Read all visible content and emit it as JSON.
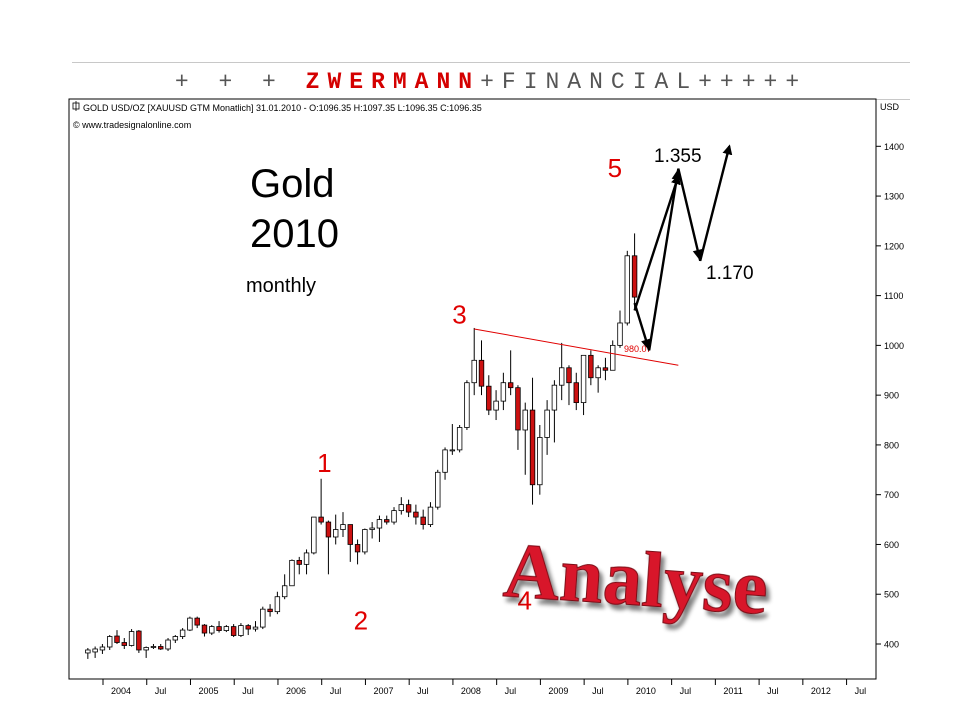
{
  "banner": {
    "prefix": "+ + + ",
    "brand": "ZWERMANN",
    "suffix": "+FINANCIAL+++++"
  },
  "chart_header": {
    "instrument": "GOLD USD/OZ [XAUUSD GTM  Monatlich] 31.01.2010 - O:1096.35 H:1097.35 L:1096.35 C:1096.35",
    "copyright": "© www.tradesignalonline.com",
    "currency": "USD"
  },
  "overlay": {
    "title_line1": "Gold",
    "title_line2": "2010",
    "subtitle": "monthly",
    "analyse": "Analyse",
    "support_level": "980.07",
    "target_high": "1.355",
    "target_low": "1.170"
  },
  "colors": {
    "up_candle": "#ffffff",
    "down_candle": "#cc1111",
    "wave_label": "#e00000",
    "trendline": "#e00000",
    "analyse": "#d8192c"
  },
  "chart_data": {
    "type": "candlestick",
    "title": "GOLD USD/OZ [XAUUSD GTM  Monatlich]",
    "ylabel": "USD",
    "ylim": [
      350,
      1470
    ],
    "grid": false,
    "y_ticks": [
      400,
      500,
      600,
      700,
      800,
      900,
      1000,
      1100,
      1200,
      1300,
      1400
    ],
    "x_ticks": [
      "2004",
      "Jul",
      "2005",
      "Jul",
      "2006",
      "Jul",
      "2007",
      "Jul",
      "2008",
      "Jul",
      "2009",
      "Jul",
      "2010",
      "Jul",
      "2011",
      "Jul",
      "2012",
      "Jul"
    ],
    "x_tick_months": [
      0,
      6,
      12,
      18,
      24,
      30,
      36,
      42,
      48,
      54,
      60,
      66,
      72,
      78,
      84,
      90,
      96,
      102
    ],
    "candles": [
      {
        "t": -4,
        "o": 382,
        "h": 392,
        "l": 370,
        "c": 388
      },
      {
        "t": -3,
        "o": 384,
        "h": 395,
        "l": 372,
        "c": 390
      },
      {
        "t": -2,
        "o": 388,
        "h": 400,
        "l": 380,
        "c": 394
      },
      {
        "t": -1,
        "o": 394,
        "h": 418,
        "l": 388,
        "c": 415
      },
      {
        "t": 0,
        "o": 416,
        "h": 428,
        "l": 400,
        "c": 403
      },
      {
        "t": 1,
        "o": 403,
        "h": 412,
        "l": 390,
        "c": 397
      },
      {
        "t": 2,
        "o": 397,
        "h": 430,
        "l": 395,
        "c": 425
      },
      {
        "t": 3,
        "o": 426,
        "h": 428,
        "l": 382,
        "c": 388
      },
      {
        "t": 4,
        "o": 388,
        "h": 395,
        "l": 372,
        "c": 393
      },
      {
        "t": 5,
        "o": 393,
        "h": 400,
        "l": 390,
        "c": 395
      },
      {
        "t": 6,
        "o": 395,
        "h": 400,
        "l": 388,
        "c": 390
      },
      {
        "t": 7,
        "o": 390,
        "h": 412,
        "l": 386,
        "c": 408
      },
      {
        "t": 8,
        "o": 408,
        "h": 418,
        "l": 402,
        "c": 415
      },
      {
        "t": 9,
        "o": 415,
        "h": 432,
        "l": 410,
        "c": 428
      },
      {
        "t": 10,
        "o": 428,
        "h": 455,
        "l": 426,
        "c": 452
      },
      {
        "t": 11,
        "o": 452,
        "h": 455,
        "l": 432,
        "c": 438
      },
      {
        "t": 12,
        "o": 438,
        "h": 440,
        "l": 415,
        "c": 422
      },
      {
        "t": 13,
        "o": 422,
        "h": 438,
        "l": 418,
        "c": 435
      },
      {
        "t": 14,
        "o": 435,
        "h": 446,
        "l": 423,
        "c": 427
      },
      {
        "t": 15,
        "o": 427,
        "h": 438,
        "l": 424,
        "c": 435
      },
      {
        "t": 16,
        "o": 435,
        "h": 440,
        "l": 414,
        "c": 417
      },
      {
        "t": 17,
        "o": 417,
        "h": 442,
        "l": 414,
        "c": 437
      },
      {
        "t": 18,
        "o": 437,
        "h": 440,
        "l": 418,
        "c": 430
      },
      {
        "t": 19,
        "o": 430,
        "h": 446,
        "l": 425,
        "c": 434
      },
      {
        "t": 20,
        "o": 434,
        "h": 475,
        "l": 430,
        "c": 470
      },
      {
        "t": 21,
        "o": 470,
        "h": 480,
        "l": 455,
        "c": 465
      },
      {
        "t": 22,
        "o": 465,
        "h": 505,
        "l": 460,
        "c": 495
      },
      {
        "t": 23,
        "o": 495,
        "h": 540,
        "l": 490,
        "c": 517
      },
      {
        "t": 24,
        "o": 517,
        "h": 570,
        "l": 517,
        "c": 568
      },
      {
        "t": 25,
        "o": 568,
        "h": 575,
        "l": 540,
        "c": 560
      },
      {
        "t": 26,
        "o": 560,
        "h": 590,
        "l": 540,
        "c": 583
      },
      {
        "t": 27,
        "o": 583,
        "h": 655,
        "l": 580,
        "c": 655
      },
      {
        "t": 28,
        "o": 655,
        "h": 732,
        "l": 640,
        "c": 645
      },
      {
        "t": 29,
        "o": 645,
        "h": 648,
        "l": 540,
        "c": 615
      },
      {
        "t": 30,
        "o": 615,
        "h": 660,
        "l": 600,
        "c": 630
      },
      {
        "t": 31,
        "o": 630,
        "h": 665,
        "l": 615,
        "c": 640
      },
      {
        "t": 32,
        "o": 640,
        "h": 640,
        "l": 565,
        "c": 600
      },
      {
        "t": 33,
        "o": 600,
        "h": 610,
        "l": 560,
        "c": 585
      },
      {
        "t": 34,
        "o": 585,
        "h": 632,
        "l": 580,
        "c": 630
      },
      {
        "t": 35,
        "o": 630,
        "h": 645,
        "l": 612,
        "c": 633
      },
      {
        "t": 36,
        "o": 633,
        "h": 658,
        "l": 605,
        "c": 650
      },
      {
        "t": 37,
        "o": 650,
        "h": 658,
        "l": 640,
        "c": 645
      },
      {
        "t": 38,
        "o": 645,
        "h": 675,
        "l": 640,
        "c": 668
      },
      {
        "t": 39,
        "o": 668,
        "h": 695,
        "l": 660,
        "c": 680
      },
      {
        "t": 40,
        "o": 680,
        "h": 690,
        "l": 655,
        "c": 665
      },
      {
        "t": 41,
        "o": 665,
        "h": 680,
        "l": 640,
        "c": 655
      },
      {
        "t": 42,
        "o": 655,
        "h": 670,
        "l": 630,
        "c": 640
      },
      {
        "t": 43,
        "o": 640,
        "h": 685,
        "l": 635,
        "c": 675
      },
      {
        "t": 44,
        "o": 675,
        "h": 750,
        "l": 670,
        "c": 745
      },
      {
        "t": 45,
        "o": 745,
        "h": 795,
        "l": 730,
        "c": 790
      },
      {
        "t": 46,
        "o": 790,
        "h": 842,
        "l": 780,
        "c": 790
      },
      {
        "t": 47,
        "o": 790,
        "h": 840,
        "l": 785,
        "c": 835
      },
      {
        "t": 48,
        "o": 835,
        "h": 930,
        "l": 830,
        "c": 925
      },
      {
        "t": 49,
        "o": 925,
        "h": 1035,
        "l": 900,
        "c": 970
      },
      {
        "t": 50,
        "o": 970,
        "h": 1010,
        "l": 900,
        "c": 918
      },
      {
        "t": 51,
        "o": 918,
        "h": 940,
        "l": 860,
        "c": 870
      },
      {
        "t": 52,
        "o": 870,
        "h": 910,
        "l": 850,
        "c": 888
      },
      {
        "t": 53,
        "o": 888,
        "h": 945,
        "l": 870,
        "c": 925
      },
      {
        "t": 54,
        "o": 925,
        "h": 990,
        "l": 900,
        "c": 915
      },
      {
        "t": 55,
        "o": 915,
        "h": 920,
        "l": 790,
        "c": 830
      },
      {
        "t": 56,
        "o": 830,
        "h": 885,
        "l": 740,
        "c": 870
      },
      {
        "t": 57,
        "o": 870,
        "h": 935,
        "l": 680,
        "c": 720
      },
      {
        "t": 58,
        "o": 720,
        "h": 840,
        "l": 700,
        "c": 815
      },
      {
        "t": 59,
        "o": 815,
        "h": 890,
        "l": 780,
        "c": 870
      },
      {
        "t": 60,
        "o": 870,
        "h": 930,
        "l": 805,
        "c": 920
      },
      {
        "t": 61,
        "o": 920,
        "h": 1005,
        "l": 890,
        "c": 955
      },
      {
        "t": 62,
        "o": 955,
        "h": 960,
        "l": 880,
        "c": 925
      },
      {
        "t": 63,
        "o": 925,
        "h": 945,
        "l": 870,
        "c": 885
      },
      {
        "t": 64,
        "o": 885,
        "h": 975,
        "l": 860,
        "c": 980
      },
      {
        "t": 65,
        "o": 980,
        "h": 990,
        "l": 920,
        "c": 935
      },
      {
        "t": 66,
        "o": 935,
        "h": 960,
        "l": 905,
        "c": 955
      },
      {
        "t": 67,
        "o": 955,
        "h": 975,
        "l": 930,
        "c": 950
      },
      {
        "t": 68,
        "o": 950,
        "h": 1010,
        "l": 950,
        "c": 1000
      },
      {
        "t": 69,
        "o": 1000,
        "h": 1070,
        "l": 995,
        "c": 1045
      },
      {
        "t": 70,
        "o": 1045,
        "h": 1190,
        "l": 1040,
        "c": 1180
      },
      {
        "t": 71,
        "o": 1180,
        "h": 1225,
        "l": 1075,
        "c": 1097
      }
    ],
    "trendline": [
      [
        49,
        1033
      ],
      [
        77,
        960
      ]
    ],
    "annotations": [
      {
        "label": "1",
        "t": 28,
        "v": 730
      },
      {
        "label": "2",
        "t": 33,
        "v": 520
      },
      {
        "label": "3",
        "t": 49,
        "v": 1040
      },
      {
        "label": "4",
        "t": 57,
        "v": 650
      },
      {
        "label": "5",
        "t": 71,
        "v": 1350
      }
    ],
    "projection_path_a": [
      [
        71,
        1085
      ],
      [
        73,
        990
      ],
      [
        77,
        1355
      ],
      [
        80,
        1170
      ],
      [
        84,
        1400
      ]
    ],
    "projection_path_b": [
      [
        71,
        1070
      ],
      [
        77,
        1340
      ]
    ]
  }
}
